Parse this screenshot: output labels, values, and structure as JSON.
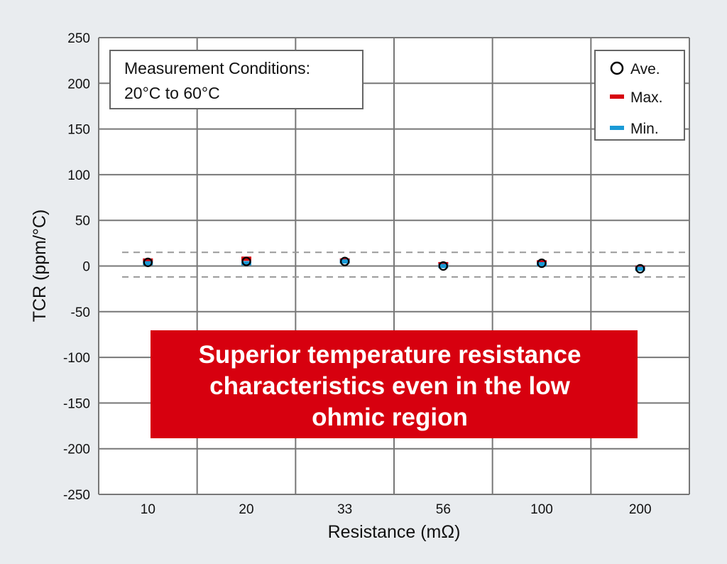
{
  "chart_data": {
    "type": "scatter",
    "xlabel": "Resistance (mΩ)",
    "ylabel": "TCR (ppm/°C)",
    "categories": [
      "10",
      "20",
      "33",
      "56",
      "100",
      "200"
    ],
    "ylim": [
      -250,
      250
    ],
    "yticks": [
      250,
      200,
      150,
      100,
      50,
      0,
      -50,
      -100,
      -150,
      -200,
      -250
    ],
    "grid": true,
    "legend_position": "top-right",
    "series": [
      {
        "name": "Ave.",
        "marker": "open-circle",
        "color": "#000000",
        "values": [
          4,
          5,
          5,
          0,
          3,
          -3
        ]
      },
      {
        "name": "Max.",
        "marker": "dash",
        "color": "#d7000f",
        "values": [
          6,
          8,
          6,
          2,
          4,
          -2
        ]
      },
      {
        "name": "Min.",
        "marker": "dash",
        "color": "#1a9ad6",
        "values": [
          3,
          3,
          5,
          0,
          2,
          -3
        ]
      }
    ],
    "reference_lines": [
      15,
      -12
    ],
    "conditions_box": {
      "line1": "Measurement Conditions:",
      "line2": "20°C to 60°C"
    },
    "callout": {
      "lines": [
        "Superior temperature resistance",
        "characteristics even in the low",
        "ohmic region"
      ],
      "color": "#d7000f"
    }
  }
}
